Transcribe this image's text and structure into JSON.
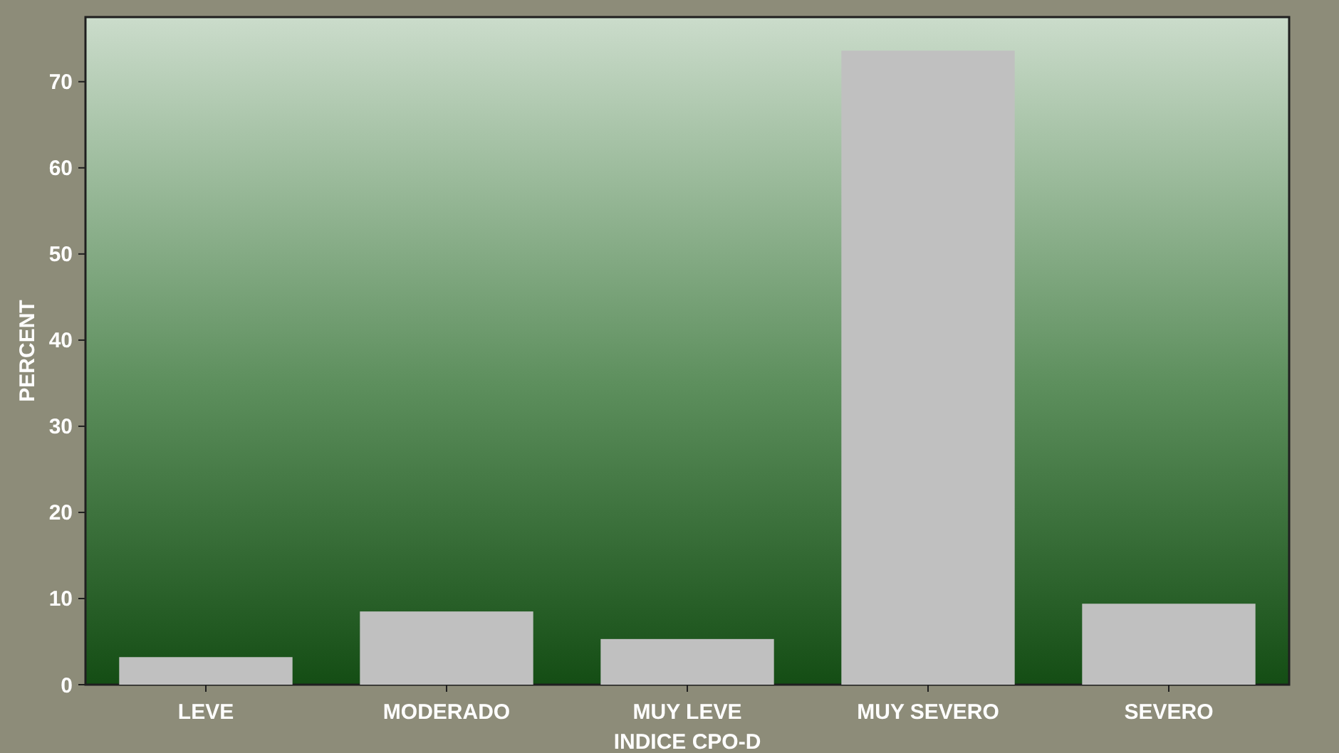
{
  "chart_data": {
    "type": "bar",
    "xlabel": "INDICE CPO-D",
    "ylabel": "PERCENT",
    "categories": [
      "LEVE",
      "MODERADO",
      "MUY LEVE",
      "MUY SEVERO",
      "SEVERO"
    ],
    "values": [
      3.2,
      8.5,
      5.3,
      73.6,
      9.4
    ],
    "color": "#c0c0c0",
    "ylim": [
      0,
      77.5
    ],
    "yticks": [
      0,
      10,
      20,
      30,
      40,
      50,
      60,
      70
    ],
    "grid": false
  }
}
